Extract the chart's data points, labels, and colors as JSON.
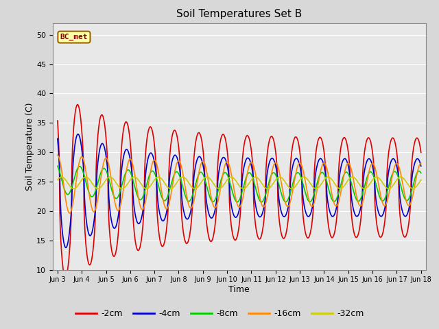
{
  "title": "Soil Temperatures Set B",
  "xlabel": "Time",
  "ylabel": "Soil Temperature (C)",
  "ylim": [
    10,
    52
  ],
  "annotation": "BC_met",
  "series_labels": [
    "-2cm",
    "-4cm",
    "-8cm",
    "-16cm",
    "-32cm"
  ],
  "series_colors": [
    "#dd0000",
    "#0000cc",
    "#00cc00",
    "#ff8800",
    "#cccc00"
  ],
  "xtick_labels": [
    "Jun 3",
    "Jun 4",
    "Jun 5",
    "Jun 6",
    "Jun 7",
    "Jun 8",
    "Jun 9",
    "Jun 10",
    "Jun 11",
    "Jun 12",
    "Jun 13",
    "Jun 14",
    "Jun 15",
    "Jun 16",
    "Jun 17",
    "Jun 18"
  ],
  "background_color": "#e8e8e8",
  "plot_bg_color": "#e8e8e8",
  "grid_color": "#ffffff",
  "yticks": [
    10,
    15,
    20,
    25,
    30,
    35,
    40,
    45,
    50
  ]
}
